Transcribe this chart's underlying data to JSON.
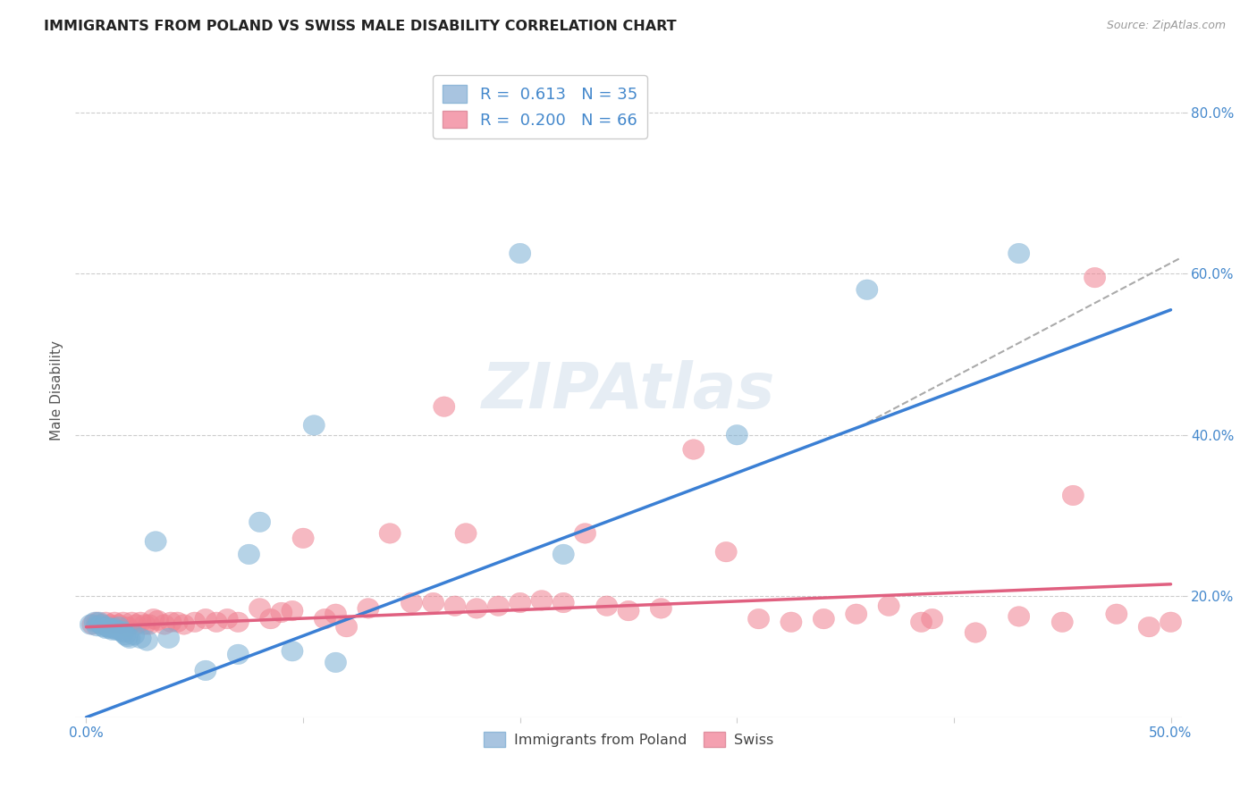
{
  "title": "IMMIGRANTS FROM POLAND VS SWISS MALE DISABILITY CORRELATION CHART",
  "source": "Source: ZipAtlas.com",
  "ylabel": "Male Disability",
  "legend_color1": "#a8c4e0",
  "legend_color2": "#f4a0b0",
  "scatter_color1": "#7bafd4",
  "scatter_color2": "#f08090",
  "line_color1": "#3a7fd4",
  "line_color2": "#e06080",
  "dash_color": "#aaaaaa",
  "grid_color": "#cccccc",
  "background_color": "#ffffff",
  "tick_color": "#4488cc",
  "label_color": "#555555",
  "xlim": [
    -0.005,
    0.505
  ],
  "ylim": [
    0.05,
    0.86
  ],
  "yticks": [
    0.2,
    0.4,
    0.6,
    0.8
  ],
  "xticks": [
    0.0,
    0.1,
    0.2,
    0.3,
    0.4,
    0.5
  ],
  "poland_x": [
    0.002,
    0.004,
    0.005,
    0.006,
    0.007,
    0.008,
    0.009,
    0.01,
    0.011,
    0.012,
    0.013,
    0.014,
    0.015,
    0.016,
    0.017,
    0.018,
    0.019,
    0.02,
    0.022,
    0.025,
    0.028,
    0.032,
    0.038,
    0.055,
    0.07,
    0.075,
    0.08,
    0.095,
    0.105,
    0.115,
    0.2,
    0.22,
    0.3,
    0.36,
    0.43
  ],
  "poland_y": [
    0.165,
    0.168,
    0.163,
    0.168,
    0.165,
    0.162,
    0.16,
    0.162,
    0.16,
    0.158,
    0.16,
    0.158,
    0.162,
    0.157,
    0.155,
    0.152,
    0.15,
    0.148,
    0.152,
    0.148,
    0.145,
    0.268,
    0.148,
    0.108,
    0.128,
    0.252,
    0.292,
    0.132,
    0.412,
    0.118,
    0.625,
    0.252,
    0.4,
    0.58,
    0.625
  ],
  "swiss_x": [
    0.003,
    0.005,
    0.007,
    0.009,
    0.011,
    0.013,
    0.015,
    0.017,
    0.019,
    0.021,
    0.023,
    0.025,
    0.027,
    0.029,
    0.031,
    0.033,
    0.036,
    0.039,
    0.042,
    0.045,
    0.05,
    0.055,
    0.06,
    0.065,
    0.07,
    0.08,
    0.085,
    0.09,
    0.095,
    0.1,
    0.11,
    0.115,
    0.12,
    0.13,
    0.14,
    0.15,
    0.16,
    0.165,
    0.17,
    0.175,
    0.18,
    0.19,
    0.2,
    0.21,
    0.22,
    0.23,
    0.24,
    0.25,
    0.265,
    0.28,
    0.295,
    0.31,
    0.325,
    0.34,
    0.355,
    0.37,
    0.39,
    0.41,
    0.43,
    0.45,
    0.465,
    0.475,
    0.49,
    0.5,
    0.385,
    0.455
  ],
  "swiss_y": [
    0.165,
    0.168,
    0.165,
    0.168,
    0.165,
    0.168,
    0.165,
    0.168,
    0.162,
    0.168,
    0.165,
    0.168,
    0.165,
    0.165,
    0.172,
    0.17,
    0.165,
    0.168,
    0.168,
    0.165,
    0.168,
    0.172,
    0.168,
    0.172,
    0.168,
    0.185,
    0.172,
    0.18,
    0.182,
    0.272,
    0.172,
    0.178,
    0.162,
    0.185,
    0.278,
    0.192,
    0.192,
    0.435,
    0.188,
    0.278,
    0.185,
    0.188,
    0.192,
    0.195,
    0.192,
    0.278,
    0.188,
    0.182,
    0.185,
    0.382,
    0.255,
    0.172,
    0.168,
    0.172,
    0.178,
    0.188,
    0.172,
    0.155,
    0.175,
    0.168,
    0.595,
    0.178,
    0.162,
    0.168,
    0.168,
    0.325
  ],
  "blue_line_x0": 0.0,
  "blue_line_y0": 0.05,
  "blue_line_x1": 0.5,
  "blue_line_y1": 0.555,
  "pink_line_x0": 0.0,
  "pink_line_y0": 0.162,
  "pink_line_x1": 0.5,
  "pink_line_y1": 0.215,
  "dash_line_x0": 0.36,
  "dash_line_y0": 0.415,
  "dash_line_x1": 0.505,
  "dash_line_y1": 0.62
}
